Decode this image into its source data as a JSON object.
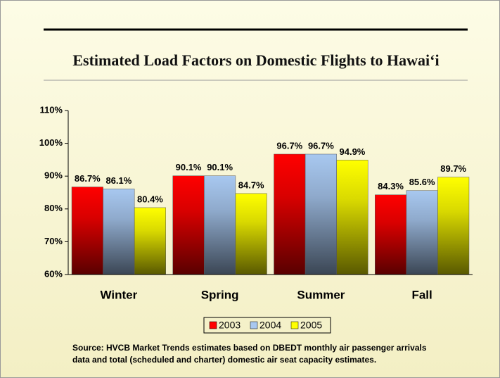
{
  "chart_data": {
    "type": "bar",
    "title": "Estimated Load Factors on Domestic Flights to Hawai‘i",
    "categories": [
      "Winter",
      "Spring",
      "Summer",
      "Fall"
    ],
    "series": [
      {
        "name": "2003",
        "color": "#ff0000",
        "values": [
          86.7,
          90.1,
          96.7,
          84.3
        ],
        "value_labels": [
          "86.7%",
          "90.1%",
          "96.7%",
          "84.3%"
        ]
      },
      {
        "name": "2004",
        "color": "#a8c8f0",
        "values": [
          86.1,
          90.1,
          96.7,
          85.6
        ],
        "value_labels": [
          "86.1%",
          "90.1%",
          "96.7%",
          "85.6%"
        ]
      },
      {
        "name": "2005",
        "color": "#ffff00",
        "values": [
          80.4,
          84.7,
          94.9,
          89.7
        ],
        "value_labels": [
          "80.4%",
          "84.7%",
          "94.9%",
          "89.7%"
        ]
      }
    ],
    "ylim": [
      60,
      110
    ],
    "yticks": [
      {
        "value": 60,
        "label": "60%"
      },
      {
        "value": 70,
        "label": "70%"
      },
      {
        "value": 80,
        "label": "80%"
      },
      {
        "value": 90,
        "label": "90%"
      },
      {
        "value": 100,
        "label": "100%"
      },
      {
        "value": 110,
        "label": "110%"
      }
    ],
    "grid": false,
    "legend": "bottom",
    "source": [
      "Source: HVCB Market Trends estimates based on DBEDT monthly air passenger arrivals",
      "data and total (scheduled and charter) domestic air seat capacity estimates."
    ]
  }
}
